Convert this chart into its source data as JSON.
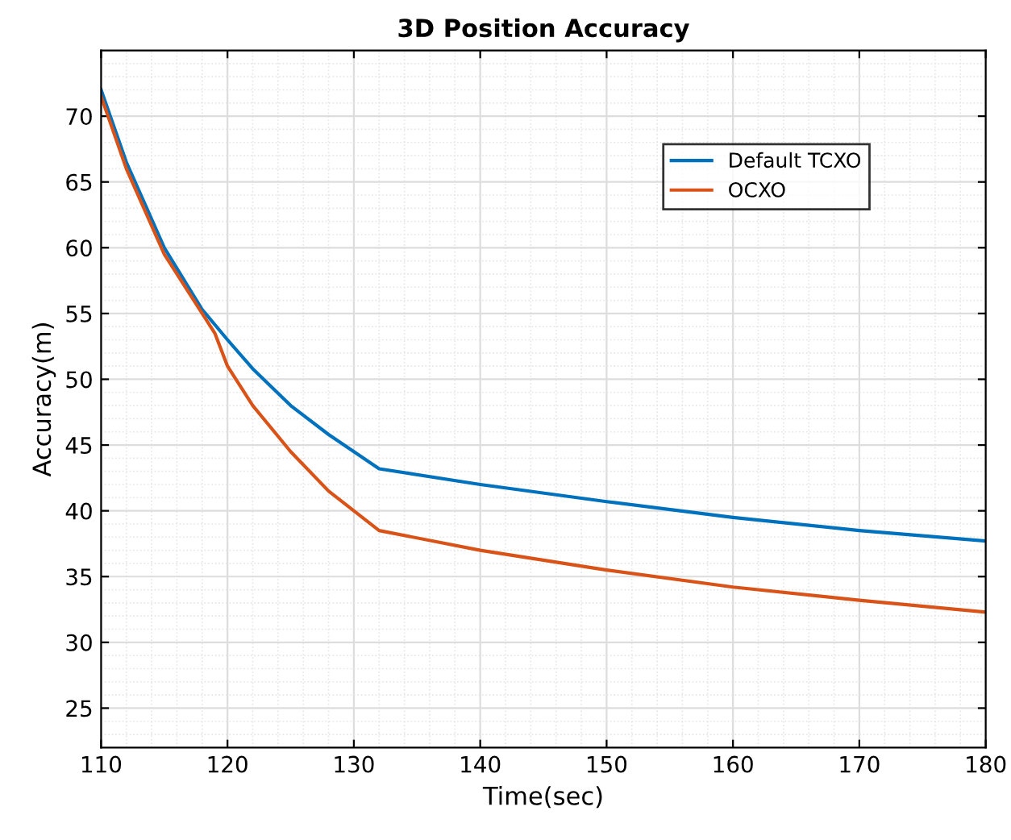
{
  "chart_data": {
    "type": "line",
    "title": "3D Position Accuracy",
    "xlabel": "Time(sec)",
    "ylabel": "Accuracy(m)",
    "xlim": [
      110,
      180
    ],
    "xticks": [
      110,
      120,
      130,
      140,
      150,
      160,
      170,
      180
    ],
    "ylim": [
      22,
      75
    ],
    "yticks": [
      25,
      30,
      35,
      40,
      45,
      50,
      55,
      60,
      65,
      70
    ],
    "grid": true,
    "legend": "top right",
    "marker": "none",
    "line_style": "solid",
    "series": [
      {
        "name": "Default TCXO",
        "color": "#0072bd",
        "x": [
          110,
          112,
          115,
          118,
          120,
          122,
          125,
          128,
          130,
          132,
          140,
          150,
          160,
          170,
          180
        ],
        "values": [
          72,
          66.5,
          60,
          55.3,
          53,
          50.8,
          48,
          45.8,
          44.5,
          43.2,
          42,
          40.7,
          39.5,
          38.5,
          37.7
        ]
      },
      {
        "name": "OCXO",
        "color": "#d95319",
        "x": [
          110,
          112,
          115,
          118,
          119,
          120,
          122,
          125,
          128,
          130,
          132,
          140,
          150,
          160,
          170,
          180
        ],
        "values": [
          71.5,
          66,
          59.5,
          55,
          53.5,
          51,
          48,
          44.5,
          41.5,
          40,
          38.5,
          37,
          35.5,
          34.2,
          33.2,
          32.3
        ]
      }
    ]
  }
}
